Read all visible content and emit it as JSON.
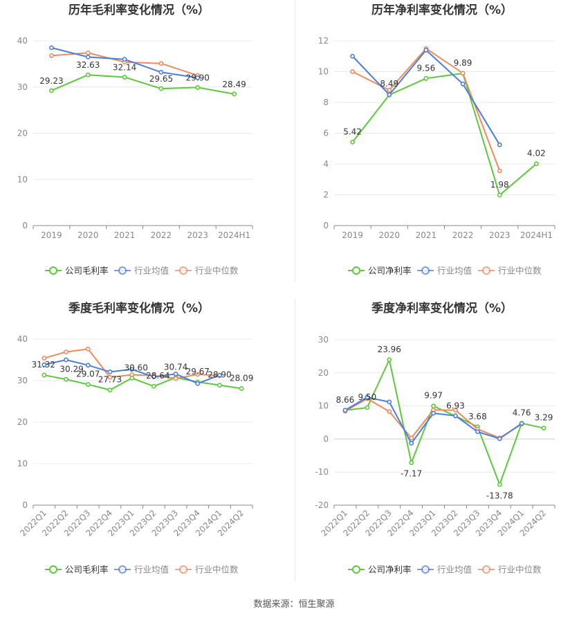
{
  "source_text": "数据来源：恒生聚源",
  "legend_colors": {
    "company": "#5cc93a",
    "avg": "#4a7de0",
    "median": "#f08a5d"
  },
  "chart_data": [
    {
      "type": "line",
      "title": "历年毛利率变化情况（%）",
      "categories": [
        "2019",
        "2020",
        "2021",
        "2022",
        "2023",
        "2024H1"
      ],
      "ylim": [
        0,
        40
      ],
      "yticks": [
        0,
        10,
        20,
        30,
        40
      ],
      "grid": true,
      "legend_position": "bottom",
      "series": [
        {
          "name": "公司毛利率",
          "role": "company",
          "values": [
            29.23,
            32.63,
            32.14,
            29.65,
            29.9,
            28.49
          ],
          "labels": [
            "29.23",
            "32.63",
            "32.14",
            "29.65",
            "29.90",
            "28.49"
          ]
        },
        {
          "name": "行业均值",
          "role": "avg",
          "values": [
            38.5,
            36.5,
            36.0,
            33.2,
            32.0,
            null
          ]
        },
        {
          "name": "行业中位数",
          "role": "median",
          "values": [
            36.8,
            37.4,
            35.4,
            35.1,
            32.5,
            null
          ]
        }
      ]
    },
    {
      "type": "line",
      "title": "历年净利率变化情况（%）",
      "categories": [
        "2019",
        "2020",
        "2021",
        "2022",
        "2023",
        "2024H1"
      ],
      "ylim": [
        0,
        12
      ],
      "yticks": [
        0,
        2,
        4,
        6,
        8,
        10,
        12
      ],
      "grid": true,
      "legend_position": "bottom",
      "series": [
        {
          "name": "公司净利率",
          "role": "company",
          "values": [
            5.42,
            8.49,
            9.56,
            9.89,
            1.98,
            4.02
          ],
          "labels": [
            "5.42",
            "8.49",
            "9.56",
            "9.89",
            "1.98",
            "4.02"
          ]
        },
        {
          "name": "行业均值",
          "role": "avg",
          "values": [
            11.0,
            8.5,
            11.4,
            9.2,
            5.25,
            null
          ]
        },
        {
          "name": "行业中位数",
          "role": "median",
          "values": [
            10.0,
            8.8,
            11.5,
            9.9,
            3.55,
            null
          ]
        }
      ]
    },
    {
      "type": "line",
      "title": "季度毛利率变化情况（%）",
      "categories": [
        "2022Q1",
        "2022Q2",
        "2022Q3",
        "2022Q4",
        "2023Q1",
        "2023Q2",
        "2023Q3",
        "2023Q4",
        "2024Q1",
        "2024Q2"
      ],
      "ylim": [
        0,
        40
      ],
      "yticks": [
        0,
        10,
        20,
        30,
        40
      ],
      "grid": true,
      "legend_position": "bottom",
      "series": [
        {
          "name": "公司毛利率",
          "role": "company",
          "values": [
            31.32,
            30.29,
            29.07,
            27.73,
            30.6,
            28.64,
            30.74,
            29.67,
            28.9,
            28.09
          ],
          "labels": [
            "31.32",
            "30.29",
            "29.07",
            "27.73",
            "30.60",
            "28.64",
            "30.74",
            "29.67",
            "28.90",
            "28.09"
          ]
        },
        {
          "name": "行业均值",
          "role": "avg",
          "values": [
            33.8,
            35.0,
            33.7,
            32.1,
            32.7,
            30.9,
            31.6,
            29.3,
            31.3,
            null
          ]
        },
        {
          "name": "行业中位数",
          "role": "median",
          "values": [
            35.4,
            36.9,
            37.6,
            30.8,
            31.4,
            31.2,
            30.5,
            31.5,
            31.2,
            null
          ]
        }
      ]
    },
    {
      "type": "line",
      "title": "季度净利率变化情况（%）",
      "categories": [
        "2022Q1",
        "2022Q2",
        "2022Q3",
        "2022Q4",
        "2023Q1",
        "2023Q2",
        "2023Q3",
        "2023Q4",
        "2024Q1",
        "2024Q2"
      ],
      "ylim": [
        -20,
        30
      ],
      "yticks": [
        -20,
        -10,
        0,
        10,
        20,
        30
      ],
      "grid": true,
      "legend_position": "bottom",
      "series": [
        {
          "name": "公司净利率",
          "role": "company",
          "values": [
            8.66,
            9.5,
            23.96,
            -7.17,
            9.97,
            6.93,
            3.68,
            -13.78,
            4.76,
            3.29
          ],
          "labels": [
            "8.66",
            "9.50",
            "23.96",
            "-7.17",
            "9.97",
            "6.93",
            "3.68",
            "-13.78",
            "4.76",
            "3.29"
          ]
        },
        {
          "name": "行业均值",
          "role": "avg",
          "values": [
            8.7,
            12.6,
            11.2,
            -1.3,
            7.8,
            7.0,
            2.2,
            0.1,
            4.7,
            null
          ]
        },
        {
          "name": "行业中位数",
          "role": "median",
          "values": [
            8.4,
            12.2,
            8.3,
            0.3,
            8.8,
            8.7,
            3.0,
            0.3,
            4.5,
            null
          ]
        }
      ]
    }
  ]
}
